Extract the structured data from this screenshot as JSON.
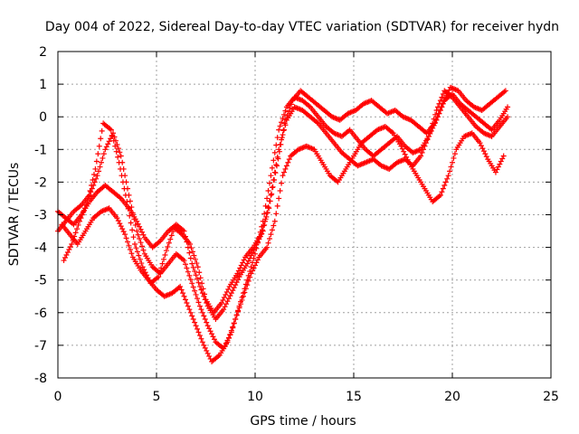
{
  "chart_data": {
    "type": "scatter",
    "title": "Day 004 of 2022, Sidereal Day-to-day VTEC variation (SDTVAR) for receiver hydn",
    "xlabel": "GPS time / hours",
    "ylabel": "SDTVAR / TECUs",
    "xlim": [
      0,
      25
    ],
    "ylim": [
      -8,
      2
    ],
    "xticks": [
      "0",
      "5",
      "10",
      "15",
      "20",
      "25"
    ],
    "yticks": [
      "-8",
      "-7",
      "-6",
      "-5",
      "-4",
      "-3",
      "-2",
      "-1",
      "0",
      "1",
      "2"
    ],
    "grid": true,
    "legend": "none",
    "marker": "plus",
    "color": "#ff0000",
    "series": [
      {
        "x": [
          0.0,
          0.4,
          0.8,
          1.2,
          1.6,
          2.0,
          2.4,
          2.8,
          3.2,
          3.6,
          4.0,
          4.4,
          4.8,
          5.2,
          5.6,
          6.0,
          6.4,
          6.8,
          7.2,
          7.6,
          8.0,
          8.4,
          8.8,
          9.2,
          9.6,
          10.0,
          10.4,
          10.8,
          11.2,
          11.6,
          12.0,
          12.4,
          12.8,
          13.2,
          13.6,
          14.0,
          14.4,
          14.8,
          15.2,
          15.6,
          16.0,
          16.4,
          16.8,
          17.2,
          17.6,
          18.0,
          18.4,
          18.8,
          19.2,
          19.6,
          20.0,
          20.4,
          20.8,
          21.2,
          21.6,
          22.0,
          22.4,
          22.8
        ],
        "values": [
          -3.5,
          -3.2,
          -2.9,
          -2.7,
          -2.4,
          -1.8,
          -1.0,
          -0.5,
          -1.2,
          -2.4,
          -3.5,
          -4.2,
          -4.6,
          -4.8,
          -4.5,
          -4.2,
          -4.4,
          -5.1,
          -5.8,
          -6.4,
          -6.9,
          -7.1,
          -6.6,
          -5.8,
          -5.0,
          -4.2,
          -3.2,
          -1.8,
          -0.4,
          0.3,
          0.6,
          0.5,
          0.3,
          0.0,
          -0.3,
          -0.5,
          -0.6,
          -0.4,
          -0.7,
          -1.0,
          -1.2,
          -1.0,
          -0.8,
          -0.6,
          -0.9,
          -1.1,
          -1.0,
          -0.6,
          -0.1,
          0.5,
          0.7,
          0.4,
          0.2,
          0.0,
          -0.2,
          -0.4,
          -0.1,
          0.3
        ]
      },
      {
        "x": [
          0.0,
          0.4,
          0.8,
          1.2,
          1.6,
          2.0,
          2.4,
          2.8,
          3.2,
          3.6,
          4.0,
          4.4,
          4.8,
          5.2,
          5.6,
          6.0,
          6.4,
          6.8,
          7.2,
          7.6,
          8.0,
          8.4,
          8.8,
          9.2,
          9.6,
          10.0,
          10.4,
          10.8,
          11.2,
          11.6,
          12.0,
          12.4,
          12.8,
          13.2,
          13.6,
          14.0,
          14.4,
          14.8,
          15.2,
          15.6,
          16.0,
          16.4,
          16.8,
          17.2,
          17.6,
          18.0,
          18.4,
          18.8,
          19.2,
          19.6,
          20.0,
          20.4,
          20.8,
          21.2,
          21.6,
          22.0,
          22.4,
          22.8
        ],
        "values": [
          -2.9,
          -3.1,
          -3.3,
          -3.0,
          -2.6,
          -2.3,
          -2.1,
          -2.3,
          -2.5,
          -2.8,
          -3.2,
          -3.7,
          -4.0,
          -3.8,
          -3.5,
          -3.3,
          -3.5,
          -4.5,
          -5.2,
          -5.8,
          -6.2,
          -5.9,
          -5.4,
          -4.9,
          -4.5,
          -4.0,
          -3.5,
          -2.4,
          -1.0,
          -0.1,
          0.3,
          0.2,
          0.0,
          -0.2,
          -0.5,
          -0.8,
          -1.1,
          -1.3,
          -1.5,
          -1.4,
          -1.3,
          -1.5,
          -1.6,
          -1.4,
          -1.3,
          -1.5,
          -1.2,
          -0.6,
          0.2,
          0.8,
          0.6,
          0.3,
          0.0,
          -0.3,
          -0.5,
          -0.6,
          -0.3,
          0.0
        ]
      },
      {
        "x": [
          0.2,
          0.6,
          1.0,
          1.4,
          1.8,
          2.2,
          2.6,
          3.0,
          3.4,
          3.8,
          4.2,
          4.6,
          5.0,
          5.4,
          5.8,
          6.2,
          6.6,
          7.0,
          7.4,
          7.8,
          8.2,
          8.6,
          9.0,
          9.4,
          9.8,
          10.2,
          10.6,
          11.0,
          11.4,
          11.8,
          12.2,
          12.6,
          13.0,
          13.4,
          13.8,
          14.2,
          14.6,
          15.0,
          15.4,
          15.8,
          16.2,
          16.6,
          17.0,
          17.4,
          17.8,
          18.2,
          18.6,
          19.0,
          19.4,
          19.8,
          20.2,
          20.6,
          21.0,
          21.4,
          21.8,
          22.2,
          22.6
        ],
        "values": [
          -3.3,
          -3.6,
          -3.9,
          -3.5,
          -3.1,
          -2.9,
          -2.8,
          -3.1,
          -3.6,
          -4.3,
          -4.7,
          -5.0,
          -5.3,
          -5.5,
          -5.4,
          -5.2,
          -5.8,
          -6.4,
          -7.0,
          -7.5,
          -7.3,
          -6.9,
          -6.2,
          -5.5,
          -4.8,
          -4.3,
          -4.0,
          -3.2,
          -1.8,
          -1.2,
          -1.0,
          -0.9,
          -1.0,
          -1.4,
          -1.8,
          -2.0,
          -1.6,
          -1.2,
          -0.8,
          -0.6,
          -0.4,
          -0.3,
          -0.5,
          -0.9,
          -1.4,
          -1.8,
          -2.2,
          -2.6,
          -2.4,
          -1.8,
          -1.0,
          -0.6,
          -0.5,
          -0.8,
          -1.3,
          -1.7,
          -1.2
        ]
      },
      {
        "x": [
          0.3,
          0.7,
          1.1,
          1.5,
          1.9,
          2.3,
          2.7,
          3.1,
          3.5,
          3.9,
          4.3,
          4.7,
          5.1,
          5.5,
          5.9,
          6.3,
          6.7,
          7.1,
          7.5,
          7.9,
          8.3,
          8.7,
          9.1,
          9.5,
          9.9,
          10.3,
          10.7,
          11.1,
          11.5,
          11.9,
          12.3,
          12.7,
          13.1,
          13.5,
          13.9,
          14.3,
          14.7,
          15.1,
          15.5,
          15.9,
          16.3,
          16.7,
          17.1,
          17.5,
          17.9,
          18.3,
          18.7,
          19.1,
          19.5,
          19.9,
          20.3,
          20.7,
          21.1,
          21.5,
          21.9,
          22.3,
          22.7
        ],
        "values": [
          -4.4,
          -3.9,
          -3.2,
          -2.6,
          -1.6,
          -0.2,
          -0.4,
          -1.4,
          -2.6,
          -3.9,
          -4.6,
          -5.1,
          -4.9,
          -4.1,
          -3.4,
          -3.6,
          -3.9,
          -4.6,
          -5.6,
          -6.0,
          -5.7,
          -5.2,
          -4.8,
          -4.3,
          -4.0,
          -3.6,
          -2.8,
          -1.5,
          -0.2,
          0.5,
          0.8,
          0.6,
          0.4,
          0.2,
          0.0,
          -0.1,
          0.1,
          0.2,
          0.4,
          0.5,
          0.3,
          0.1,
          0.2,
          0.0,
          -0.1,
          -0.3,
          -0.5,
          -0.2,
          0.4,
          0.9,
          0.8,
          0.5,
          0.3,
          0.2,
          0.4,
          0.6,
          0.8
        ]
      }
    ]
  }
}
